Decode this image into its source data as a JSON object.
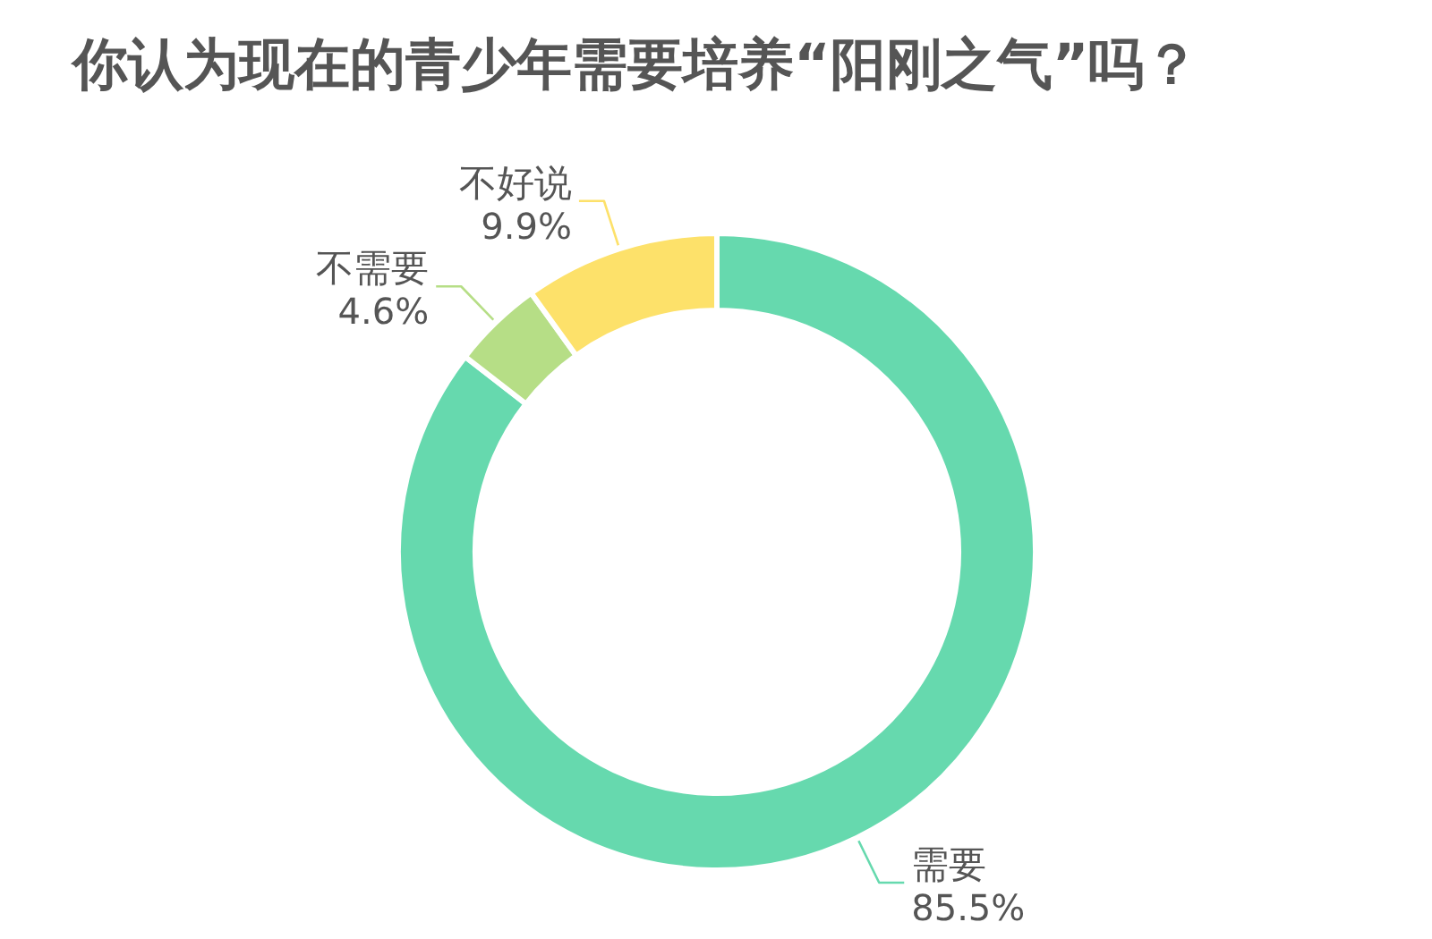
{
  "chart_data": {
    "type": "donut",
    "title": "你认为现在的青少年需要培养“阳刚之气”吗？",
    "categories": [
      "需要",
      "不需要",
      "不好说"
    ],
    "values": [
      85.5,
      4.6,
      9.9
    ],
    "colors": [
      "#66d9ae",
      "#b6de86",
      "#fde16a"
    ],
    "value_labels": [
      "85.5%",
      "4.6%",
      "9.9%"
    ]
  }
}
